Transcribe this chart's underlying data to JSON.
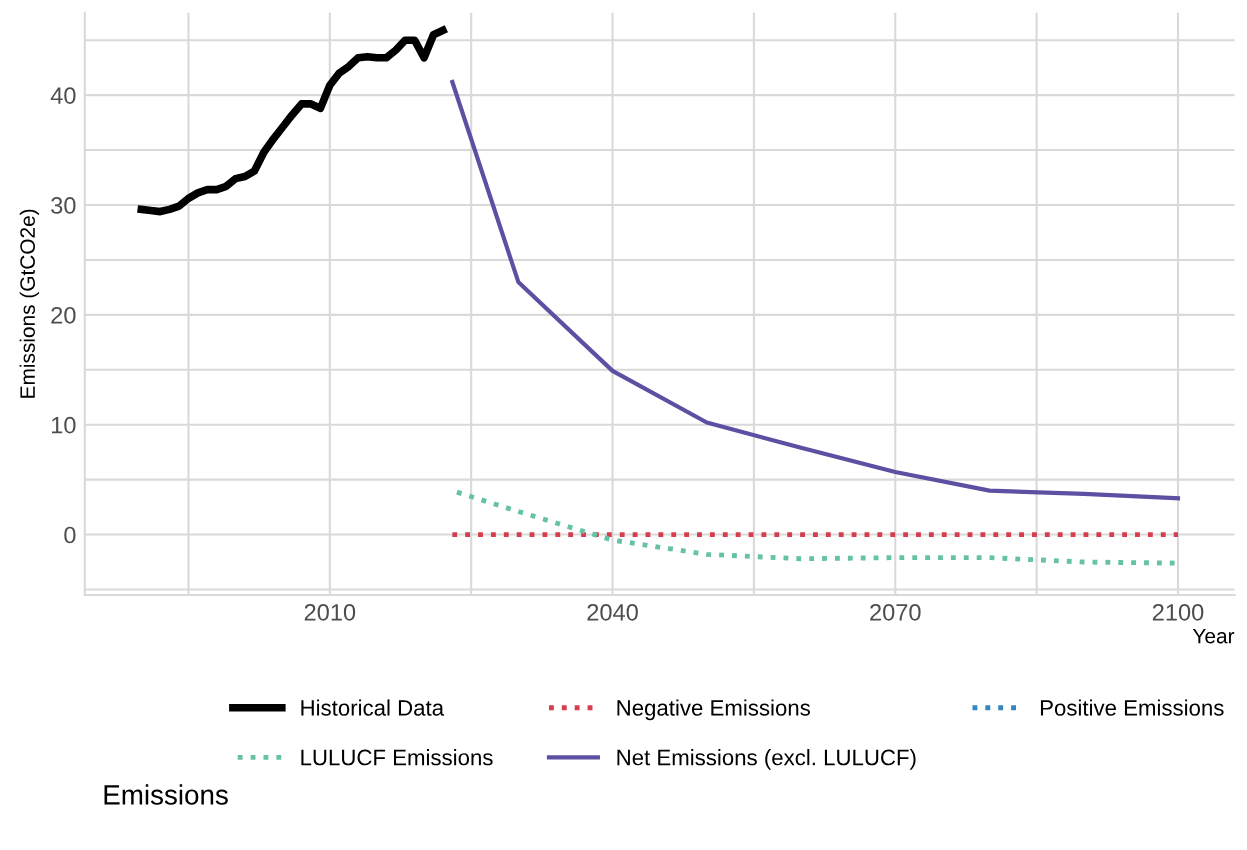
{
  "chart_data": {
    "type": "line",
    "xlabel": "Year",
    "ylabel": "Emissions (GtCO2e)",
    "legend_title": "Emissions",
    "xlim": [
      1984,
      2106
    ],
    "ylim": [
      -5.5,
      47.5
    ],
    "xticks": [
      {
        "value": 1995,
        "label": null
      },
      2010,
      {
        "value": 2025,
        "label": null
      },
      2040,
      {
        "value": 2055,
        "label": null
      },
      2070,
      {
        "value": 2085,
        "label": null
      },
      2100
    ],
    "yticks": [
      {
        "value": -5,
        "label": null
      },
      0,
      {
        "value": 5,
        "label": null
      },
      10,
      {
        "value": 15,
        "label": null
      },
      20,
      {
        "value": 25,
        "label": null
      },
      30,
      {
        "value": 35,
        "label": null
      },
      40,
      {
        "value": 45,
        "label": null
      }
    ],
    "grid": true,
    "legend": "bottom",
    "series": [
      {
        "name": "Historical Data",
        "color": "#000000",
        "line_style": "solid",
        "x": [
          1990,
          1991,
          1992,
          1993,
          1994,
          1995,
          1996,
          1997,
          1998,
          1999,
          2000,
          2001,
          2002,
          2003,
          2004,
          2005,
          2006,
          2007,
          2008,
          2009,
          2010,
          2011,
          2012,
          2013,
          2014,
          2015,
          2016,
          2017,
          2018,
          2019,
          2020,
          2021,
          2022
        ],
        "values": [
          29.6,
          29.5,
          29.4,
          29.6,
          29.9,
          30.6,
          31.1,
          31.4,
          31.4,
          31.7,
          32.4,
          32.6,
          33.1,
          34.8,
          36.0,
          37.1,
          38.2,
          39.2,
          39.2,
          38.8,
          40.9,
          42.0,
          42.6,
          43.4,
          43.5,
          43.4,
          43.4,
          44.1,
          45.0,
          45.0,
          43.4,
          45.5,
          45.9
        ]
      },
      {
        "name": "Negative Emissions",
        "color": "#d53e4f",
        "line_style": "dotted",
        "x": [
          2023,
          2100
        ],
        "values": [
          0,
          0
        ]
      },
      {
        "name": "Positive Emissions",
        "color": "#3288bd",
        "line_style": "dotted"
      },
      {
        "name": "LULUCF Emissions",
        "color": "#66c2a5",
        "line_style": "dotted",
        "x": [
          2023,
          2030,
          2040,
          2050,
          2060,
          2070,
          2080,
          2090,
          2100
        ],
        "values": [
          4.0,
          2.1,
          -0.5,
          -1.8,
          -2.2,
          -2.1,
          -2.1,
          -2.5,
          -2.6
        ]
      },
      {
        "name": "Net Emissions (excl. LULUCF)",
        "color": "#5e4fa2",
        "line_style": "solid",
        "x": [
          2023,
          2030,
          2040,
          2050,
          2060,
          2070,
          2080,
          2090,
          2100
        ],
        "values": [
          41.2,
          23.0,
          14.9,
          10.2,
          7.9,
          5.7,
          4.0,
          3.7,
          3.3
        ]
      }
    ]
  }
}
